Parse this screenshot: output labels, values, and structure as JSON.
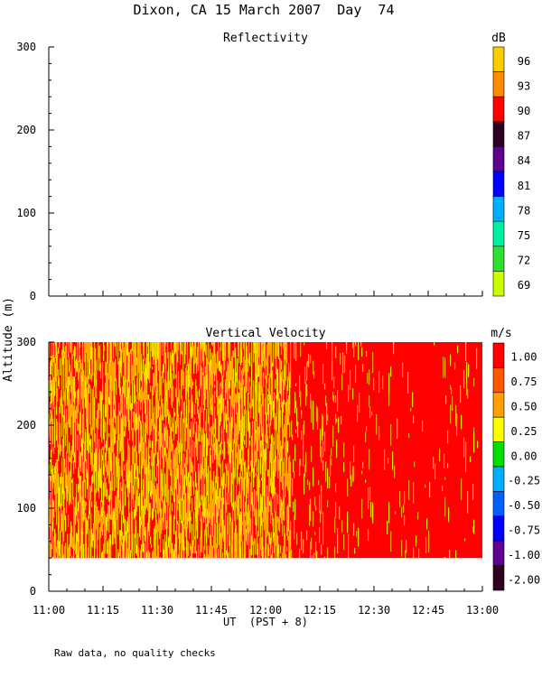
{
  "page_title": "Dixon, CA 15 March 2007  Day  74",
  "shared": {
    "ylabel": "Altitude (m)",
    "xlabel": "UT  (PST + 8)",
    "x_ticks": [
      "11:00",
      "11:15",
      "11:30",
      "11:45",
      "12:00",
      "12:15",
      "12:30",
      "12:45",
      "13:00"
    ],
    "xlim": [
      "11:00",
      "13:00"
    ],
    "footnote": "Raw data, no quality checks"
  },
  "chart_data": [
    {
      "type": "heatmap",
      "title": "Reflectivity",
      "colorbar_unit": "dB",
      "ylim": [
        0,
        300
      ],
      "y_ticks": [
        0,
        100,
        200,
        300
      ],
      "colorbar_labels": [
        "96",
        "93",
        "90",
        "87",
        "84",
        "81",
        "78",
        "75",
        "72",
        "69"
      ],
      "colorbar_colors": [
        "#ffcc00",
        "#ff8c00",
        "#ff0000",
        "#300020",
        "#600090",
        "#0000ff",
        "#00b0ff",
        "#00f0a0",
        "#30e030",
        "#ccff00"
      ],
      "data_note": "no data shown"
    },
    {
      "type": "heatmap",
      "title": "Vertical Velocity",
      "colorbar_unit": "m/s",
      "ylim": [
        0,
        300
      ],
      "y_ticks": [
        0,
        100,
        200,
        300
      ],
      "data_altitude_range": [
        40,
        300
      ],
      "colorbar_labels": [
        "1.00",
        "0.75",
        "0.50",
        "0.25",
        "0.00",
        "-0.25",
        "-0.50",
        "-0.75",
        "-1.00",
        "-2.00"
      ],
      "colorbar_colors": [
        "#ff0000",
        "#ff5a00",
        "#ffa000",
        "#ffff00",
        "#00e000",
        "#00b0ff",
        "#0060ff",
        "#0000ff",
        "#600090",
        "#300020"
      ],
      "field_colors": {
        "dominant": "#ff0000",
        "secondary": "#ffa500",
        "streaks": "#ffdf00"
      },
      "field_segments": [
        {
          "x_start": "11:00",
          "x_end": "12:07",
          "pattern": "mixed red and orange/yellow streaks"
        },
        {
          "x_start": "12:07",
          "x_end": "12:29",
          "pattern": "mostly red, scattered orange streaks"
        },
        {
          "x_start": "12:29",
          "x_end": "13:00",
          "pattern": "almost uniform red, sparse streaks"
        }
      ]
    }
  ]
}
